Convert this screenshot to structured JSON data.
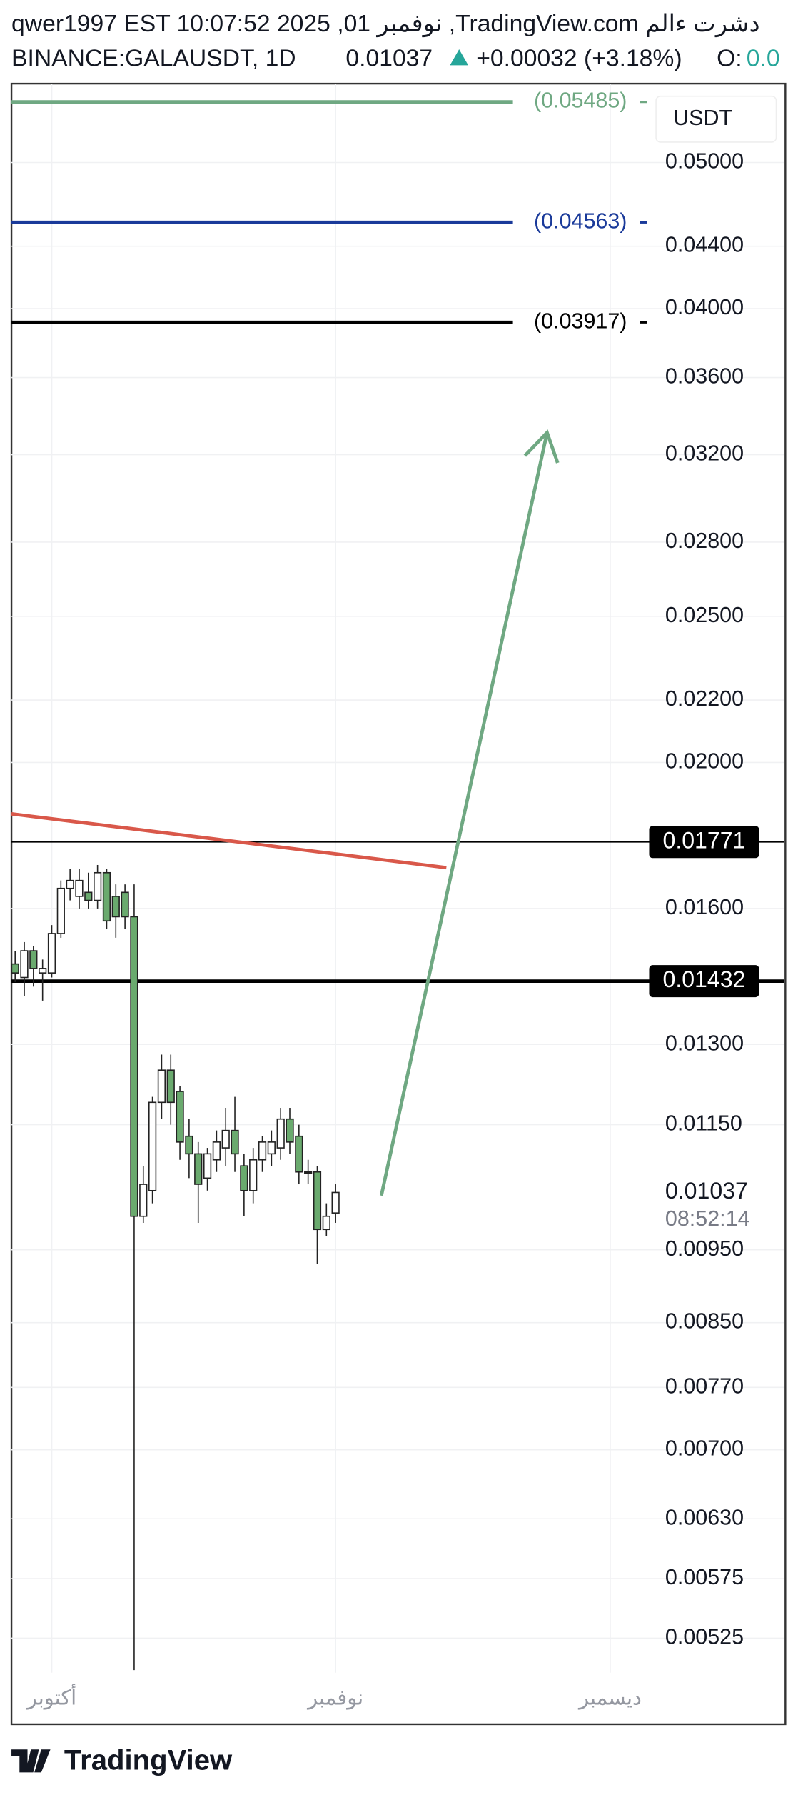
{
  "chart_data": {
    "type": "candlestick",
    "header": {
      "line1": "qwer1997 EST 10:07:52 2025 ,01 ربمفون ,TradingView.com ملاء ترشد",
      "symbol": "BINANCE:GALAUSDT, 1D",
      "last": "0.01037",
      "change": "+0.00032 (+3.18%)",
      "open_label": "O:",
      "open_value": "0.0"
    },
    "currency": "USDT",
    "footer": "TradingView",
    "log_scale": true,
    "grid": true,
    "up_color": "#ffffff",
    "down_color": "#6aaa6e",
    "open": [
      0.0147,
      0.0144,
      0.015,
      0.0145,
      0.0145,
      0.0154,
      0.0165,
      0.0163,
      0.0164,
      0.0162,
      0.0169,
      0.0163,
      0.0164,
      0.0158,
      0.01,
      0.0104,
      0.0119,
      0.0125,
      0.0121,
      0.0113,
      0.011,
      0.0106,
      0.0109,
      0.0111,
      0.0114,
      0.0108,
      0.0104,
      0.0109,
      0.011,
      0.0111,
      0.0116,
      0.0113,
      0.0107,
      0.0107,
      0.0098,
      0.01005
    ],
    "high": [
      0.015,
      0.0152,
      0.0151,
      0.0148,
      0.0156,
      0.0167,
      0.017,
      0.017,
      0.0169,
      0.0171,
      0.017,
      0.0166,
      0.0166,
      0.0166,
      0.0108,
      0.012,
      0.0128,
      0.0128,
      0.0122,
      0.0116,
      0.0112,
      0.0111,
      0.0114,
      0.0118,
      0.012,
      0.011,
      0.0111,
      0.0113,
      0.0114,
      0.0118,
      0.0118,
      0.0115,
      0.0109,
      0.0108,
      0.0102,
      0.0105
    ],
    "low": [
      0.0143,
      0.014,
      0.0142,
      0.0139,
      0.0144,
      0.0153,
      0.0162,
      0.016,
      0.016,
      0.016,
      0.0155,
      0.0153,
      0.0155,
      0.005,
      0.0099,
      0.0102,
      0.0116,
      0.0115,
      0.0109,
      0.0106,
      0.0099,
      0.0104,
      0.0107,
      0.0108,
      0.0107,
      0.01,
      0.0102,
      0.0107,
      0.0108,
      0.0109,
      0.011,
      0.0105,
      0.0105,
      0.0093,
      0.0097,
      0.0099
    ],
    "close": [
      0.0145,
      0.015,
      0.0146,
      0.0146,
      0.0154,
      0.0165,
      0.0167,
      0.0167,
      0.0162,
      0.0169,
      0.0157,
      0.0158,
      0.0158,
      0.01,
      0.0105,
      0.0119,
      0.0125,
      0.0119,
      0.0112,
      0.011,
      0.0105,
      0.011,
      0.0112,
      0.0114,
      0.011,
      0.0104,
      0.0109,
      0.0112,
      0.0112,
      0.0116,
      0.0112,
      0.0107,
      0.0107,
      0.0098,
      0.01,
      0.01037
    ],
    "xlim": [
      -0.4,
      69
    ],
    "xticks": [
      {
        "value": 4,
        "label": "أكتوبر"
      },
      {
        "value": 35,
        "label": "نوفمبر"
      },
      {
        "value": 65,
        "label": "ديسمبر"
      }
    ],
    "ylim": [
      0.00498,
      0.0564
    ],
    "yticks": [
      {
        "value": 0.05,
        "label": "0.05000"
      },
      {
        "value": 0.044,
        "label": "0.04400"
      },
      {
        "value": 0.04,
        "label": "0.04000"
      },
      {
        "value": 0.036,
        "label": "0.03600"
      },
      {
        "value": 0.032,
        "label": "0.03200"
      },
      {
        "value": 0.028,
        "label": "0.02800"
      },
      {
        "value": 0.025,
        "label": "0.02500"
      },
      {
        "value": 0.022,
        "label": "0.02200"
      },
      {
        "value": 0.02,
        "label": "0.02000"
      },
      {
        "value": 0.016,
        "label": "0.01600"
      },
      {
        "value": 0.013,
        "label": "0.01300"
      },
      {
        "value": 0.0115,
        "label": "0.01150"
      },
      {
        "value": 0.0095,
        "label": "0.00950"
      },
      {
        "value": 0.0085,
        "label": "0.00850"
      },
      {
        "value": 0.0077,
        "label": "0.00770"
      },
      {
        "value": 0.007,
        "label": "0.00700"
      },
      {
        "value": 0.0063,
        "label": "0.00630"
      },
      {
        "value": 0.00575,
        "label": "0.00575"
      },
      {
        "value": 0.00525,
        "label": "0.00525"
      }
    ],
    "levels": [
      {
        "value": 0.05485,
        "label": "(0.05485)",
        "color": "#6fa882"
      },
      {
        "value": 0.04563,
        "label": "(0.04563)",
        "color": "#1a3a9a"
      },
      {
        "value": 0.03917,
        "label": "(0.03917)",
        "color": "#000000"
      }
    ],
    "price_lines": [
      {
        "value": 0.01771,
        "label": "0.01771",
        "width": 1
      },
      {
        "value": 0.01432,
        "label": "0.01432",
        "width": 3
      }
    ],
    "last_price": {
      "value": 0.01037,
      "label": "0.01037"
    },
    "countdown": "08:52:14",
    "trendline": {
      "x": [
        -0.4,
        47.1
      ],
      "y": [
        0.01849,
        0.01703
      ],
      "color": "#d9584a"
    },
    "arrow": {
      "x": [
        40,
        58.1
      ],
      "y": [
        0.01032,
        0.0331
      ],
      "color": "#6fa882"
    }
  }
}
